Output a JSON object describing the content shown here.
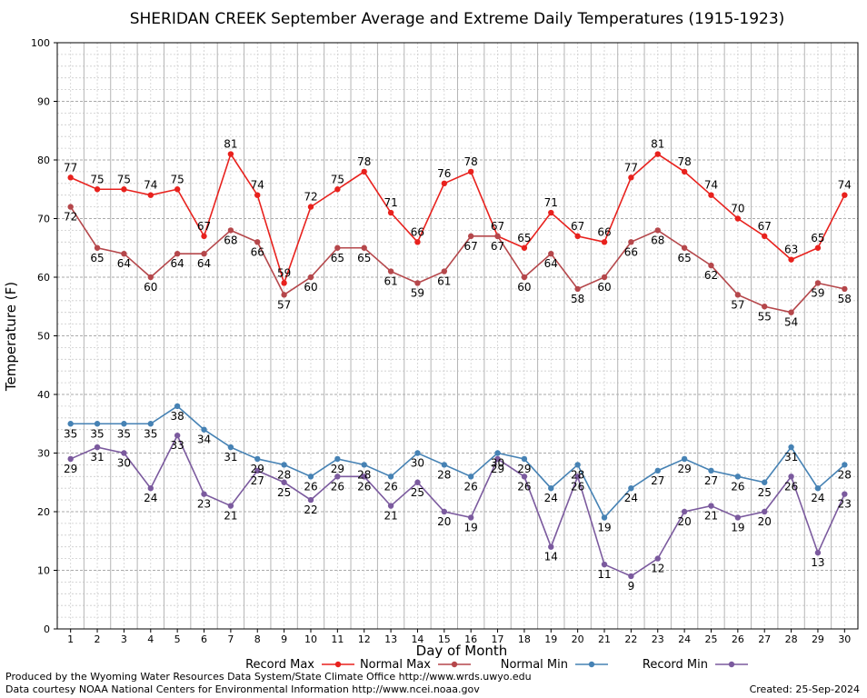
{
  "chart_data": {
    "type": "line",
    "title": "SHERIDAN CREEK September Average and Extreme Daily Temperatures (1915-1923)",
    "xlabel": "Day of Month",
    "ylabel": "Temperature (F)",
    "ylim": [
      0,
      100
    ],
    "y_ticks": [
      0,
      10,
      20,
      30,
      40,
      50,
      60,
      70,
      80,
      90,
      100
    ],
    "x": [
      1,
      2,
      3,
      4,
      5,
      6,
      7,
      8,
      9,
      10,
      11,
      12,
      13,
      14,
      15,
      16,
      17,
      18,
      19,
      20,
      21,
      22,
      23,
      24,
      25,
      26,
      27,
      28,
      29,
      30
    ],
    "grid": true,
    "legend_position": "bottom",
    "series": [
      {
        "name": "Record Max",
        "color": "#e8211d",
        "values": [
          77,
          75,
          75,
          74,
          75,
          67,
          81,
          74,
          59,
          72,
          75,
          78,
          71,
          66,
          76,
          78,
          67,
          65,
          71,
          67,
          66,
          77,
          81,
          78,
          74,
          70,
          67,
          63,
          65,
          74
        ]
      },
      {
        "name": "Normal Max",
        "color": "#b5474b",
        "values": [
          72,
          65,
          64,
          60,
          64,
          64,
          68,
          66,
          57,
          60,
          65,
          65,
          61,
          59,
          61,
          67,
          67,
          60,
          64,
          58,
          60,
          66,
          68,
          65,
          62,
          57,
          55,
          54,
          59,
          58
        ]
      },
      {
        "name": "Normal Min",
        "color": "#4682b4",
        "values": [
          35,
          35,
          35,
          35,
          38,
          34,
          31,
          29,
          28,
          26,
          29,
          28,
          26,
          30,
          28,
          26,
          30,
          29,
          24,
          28,
          19,
          24,
          27,
          29,
          27,
          26,
          25,
          31,
          24,
          28
        ]
      },
      {
        "name": "Record Min",
        "color": "#7b5a9e",
        "values": [
          29,
          31,
          30,
          24,
          33,
          23,
          21,
          27,
          25,
          22,
          26,
          26,
          21,
          25,
          20,
          19,
          29,
          26,
          14,
          26,
          11,
          9,
          12,
          20,
          21,
          19,
          20,
          26,
          13,
          23
        ]
      }
    ]
  },
  "footer": {
    "line1": "Produced by the Wyoming Water Resources Data System/State Climate Office http://www.wrds.uwyo.edu",
    "line2": "Data courtesy NOAA National Centers for Environmental Information http://www.ncei.noaa.gov",
    "created": "Created:  25-Sep-2024"
  }
}
